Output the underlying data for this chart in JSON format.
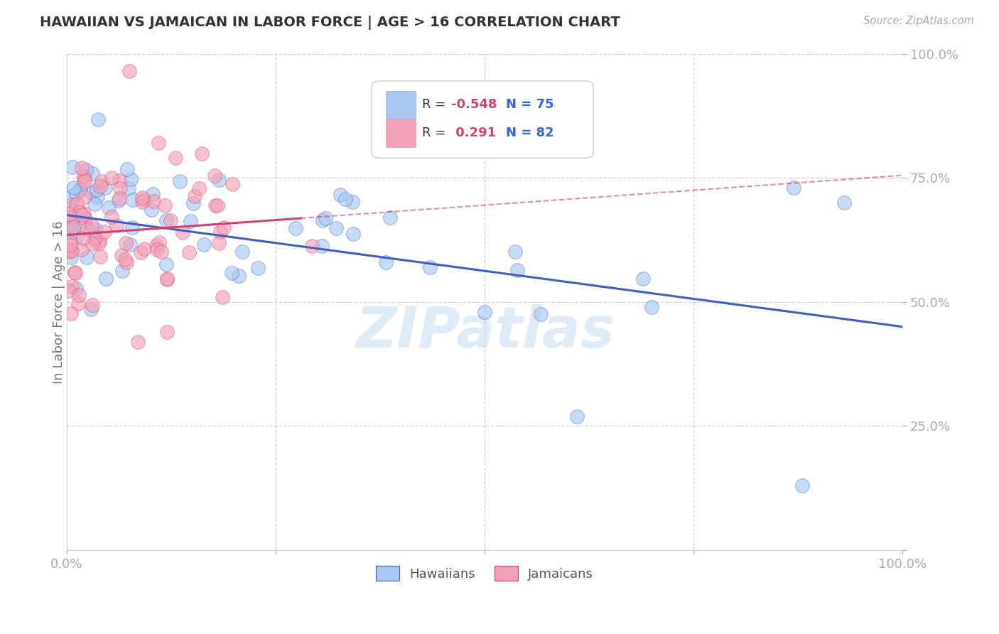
{
  "title": "HAWAIIAN VS JAMAICAN IN LABOR FORCE | AGE > 16 CORRELATION CHART",
  "source_text": "Source: ZipAtlas.com",
  "ylabel": "In Labor Force | Age > 16",
  "xlim": [
    0.0,
    1.0
  ],
  "ylim": [
    0.0,
    1.0
  ],
  "xticks": [
    0.0,
    0.25,
    0.5,
    0.75,
    1.0
  ],
  "yticks": [
    0.0,
    0.25,
    0.5,
    0.75,
    1.0
  ],
  "xticklabels": [
    "0.0%",
    "",
    "",
    "",
    "100.0%"
  ],
  "yticklabels": [
    "",
    "25.0%",
    "50.0%",
    "75.0%",
    "100.0%"
  ],
  "hawaiian_R": -0.548,
  "hawaiian_N": 75,
  "jamaican_R": 0.291,
  "jamaican_N": 82,
  "hawaiian_color": "#A8C8F0",
  "jamaican_color": "#F4A0B8",
  "hawaiian_line_color": "#4060C0",
  "jamaican_line_color": "#D04070",
  "legend_R_color": "#E05080",
  "legend_N_color": "#3366DD",
  "background_color": "#FFFFFF",
  "grid_color": "#BBBBBB",
  "watermark_text": "ZIPatlas",
  "hawaiian_line_intercept": 0.675,
  "hawaiian_line_slope": -0.225,
  "jamaican_line_intercept": 0.635,
  "jamaican_line_slope": 0.12
}
